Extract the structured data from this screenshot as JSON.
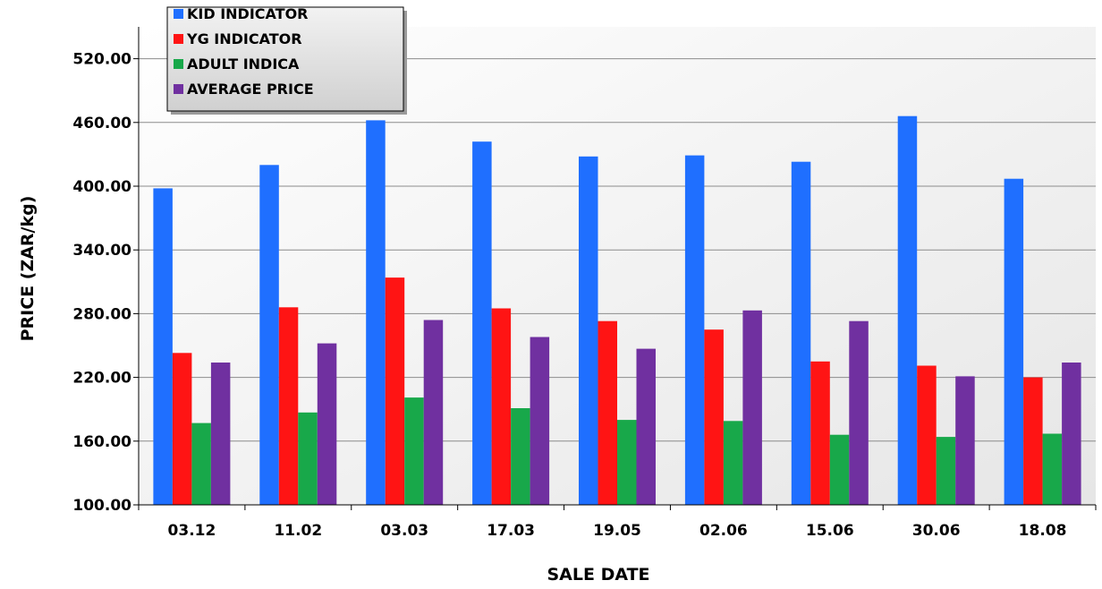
{
  "chart_data": {
    "type": "bar",
    "title": "",
    "xlabel": "SALE DATE",
    "ylabel": "PRICE (ZAR/kg)",
    "ylim": [
      100,
      550
    ],
    "yticks": [
      "100.00",
      "160.00",
      "220.00",
      "280.00",
      "340.00",
      "400.00",
      "460.00",
      "520.00"
    ],
    "categories": [
      "03.12",
      "11.02",
      "03.03",
      "17.03",
      "19.05",
      "02.06",
      "15.06",
      "30.06",
      "18.08"
    ],
    "series": [
      {
        "name": "KID INDICATOR",
        "color": "#1f6fff",
        "values": [
          398,
          420,
          462,
          442,
          428,
          429,
          423,
          466,
          407
        ]
      },
      {
        "name": "YG INDICATOR",
        "color": "#ff1414",
        "values": [
          243,
          286,
          314,
          285,
          273,
          265,
          235,
          231,
          220
        ]
      },
      {
        "name": "ADULT INDICA",
        "color": "#18a84a",
        "values": [
          177,
          187,
          201,
          191,
          180,
          179,
          166,
          164,
          167
        ]
      },
      {
        "name": "AVERAGE PRICE",
        "color": "#7030a0",
        "values": [
          234,
          252,
          274,
          258,
          247,
          283,
          273,
          221,
          234
        ]
      }
    ],
    "legend_position": "top-left",
    "grid": true
  }
}
